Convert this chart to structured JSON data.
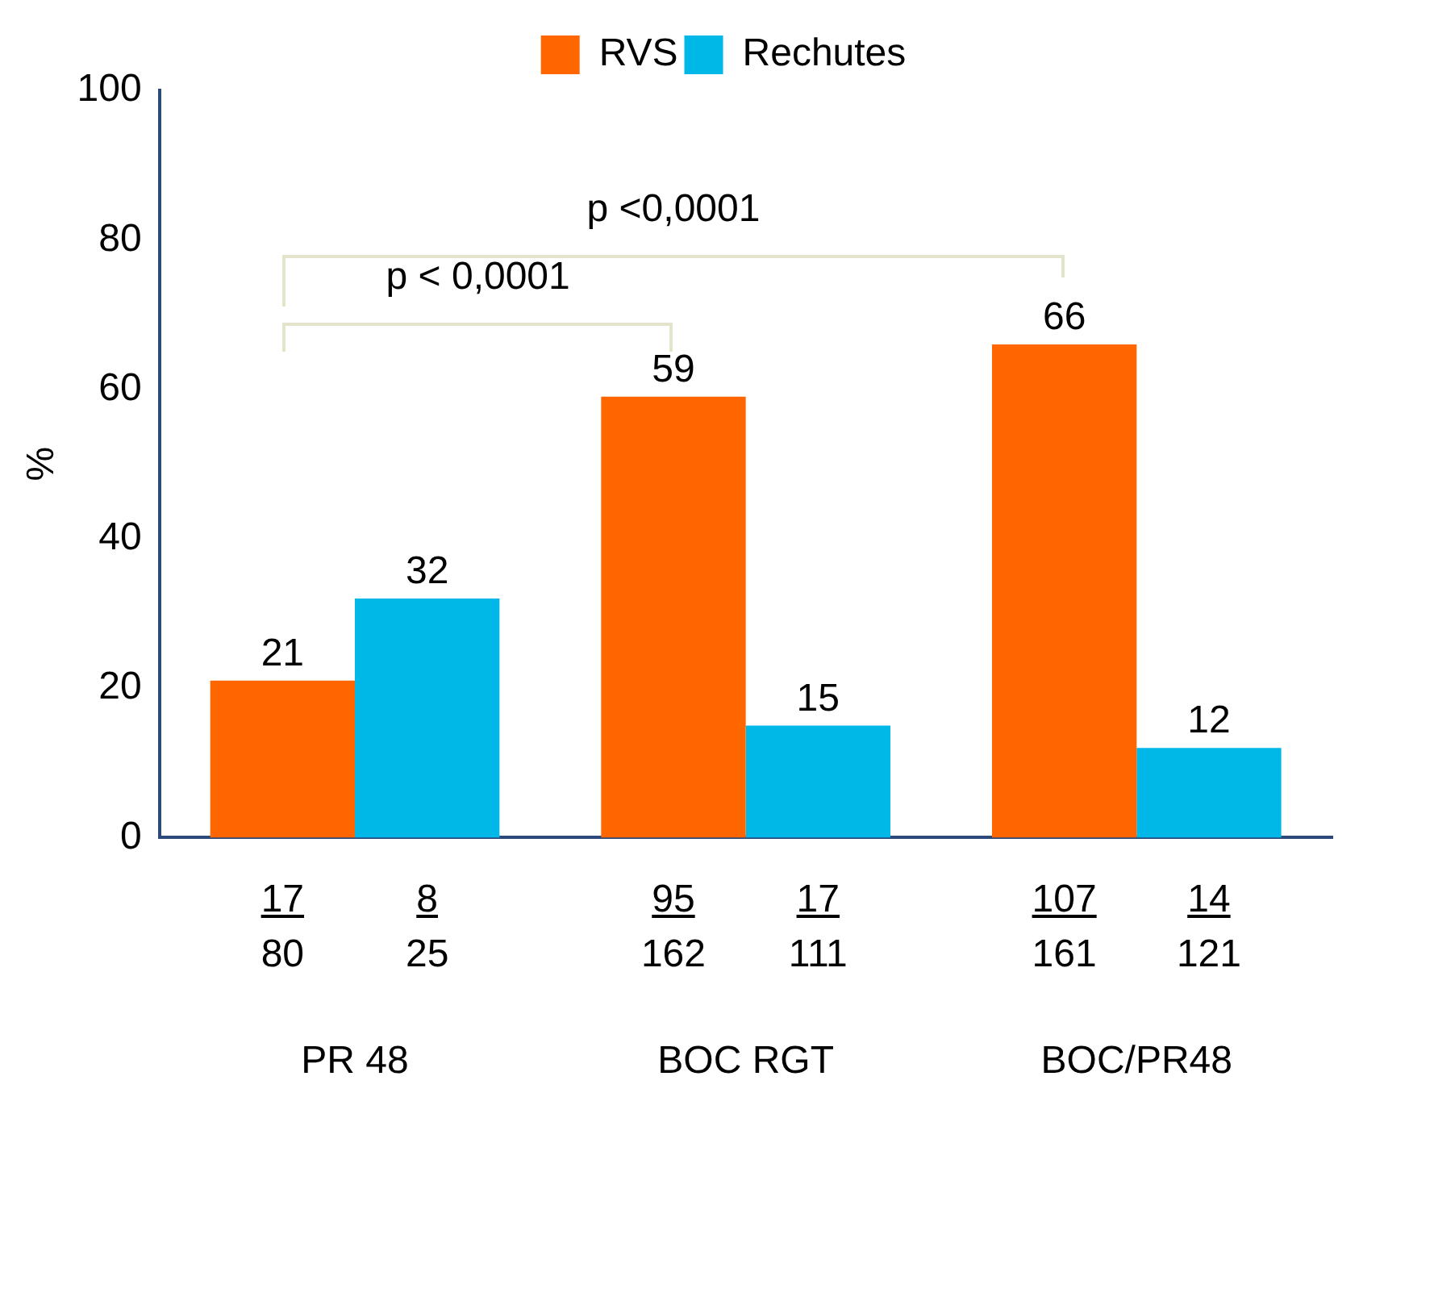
{
  "chart_data": {
    "type": "bar",
    "ylabel": "%",
    "categories": [
      "PR 48",
      "BOC RGT",
      "BOC/PR48"
    ],
    "series": [
      {
        "name": "RVS",
        "color": "#ff6600",
        "values": [
          21,
          59,
          66
        ]
      },
      {
        "name": "Rechutes",
        "color": "#00b8e8",
        "values": [
          32,
          15,
          12
        ]
      }
    ],
    "ylim": [
      0,
      100
    ],
    "yticks": [
      0,
      20,
      40,
      60,
      80,
      100
    ],
    "grid": false,
    "legend": "top",
    "data_labels": true,
    "annotations": [
      "17",
      "80",
      "8",
      "25",
      "95",
      "162",
      "17",
      "111",
      "107",
      "161",
      "14",
      "121",
      "p < 0,0001",
      "p <0,0001"
    ]
  }
}
